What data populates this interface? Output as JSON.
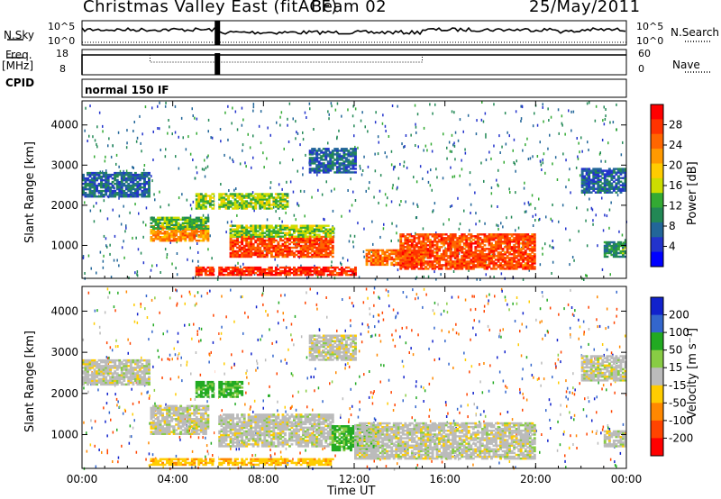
{
  "header": {
    "station": "Christmas Valley East (fitACF)",
    "beam": "Beam 02",
    "date": "25/May/2011"
  },
  "strips": {
    "nsky_label": "N.Sky",
    "nsky_ticks": [
      "10^5",
      "10^0"
    ],
    "nsearch_label": "N.Search",
    "nsearch_ticks": [
      "10^5",
      "10^0"
    ],
    "freq_label": "Freq.",
    "freq_unit": "[MHz]",
    "freq_ticks": [
      "18",
      "8"
    ],
    "nave_label": "Nave",
    "nave_ticks": [
      "60",
      "0"
    ],
    "cpid_label": "CPID",
    "cpid_value": "normal 150 IF"
  },
  "panels": {
    "ylabel": "Slant Range [km]",
    "xlabel": "Time UT",
    "power_label": "Power [dB]",
    "power_colorbar": {
      "ticks": [
        "28",
        "24",
        "20",
        "16",
        "12",
        "8",
        "4"
      ],
      "colors": [
        "#ff0000",
        "#ff3300",
        "#ff6600",
        "#ff9900",
        "#ffcc00",
        "#ccdd00",
        "#33aa33",
        "#228855",
        "#226699",
        "#2233cc",
        "#0000ff"
      ]
    },
    "velocity_label": "Velocity [m s⁻¹]",
    "velocity_colorbar": {
      "ticks": [
        "200",
        "100",
        "50",
        "15",
        "-15",
        "-50",
        "-100",
        "-200"
      ],
      "colors": [
        "#1122cc",
        "#3366cc",
        "#22aa22",
        "#88cc44",
        "#bbbbbb",
        "#ffcc00",
        "#ff8800",
        "#ff4400",
        "#ff0000"
      ]
    }
  },
  "chart_data": [
    {
      "type": "heatmap",
      "title": "Power [dB]",
      "xlabel": "Time UT",
      "ylabel": "Slant Range [km]",
      "x_ticks": [
        "00:00",
        "04:00",
        "08:00",
        "12:00",
        "16:00",
        "20:00",
        "00:00"
      ],
      "y_ticks": [
        1000,
        2000,
        3000,
        4000
      ],
      "xlim": [
        0,
        24
      ],
      "ylim": [
        180,
        4600
      ],
      "regions": [
        {
          "t0": 0.0,
          "t1": 3.0,
          "r0": 2200,
          "r1": 2800,
          "value": 6
        },
        {
          "t0": 3.0,
          "t1": 5.5,
          "r0": 1100,
          "r1": 1500,
          "value": 22
        },
        {
          "t0": 3.0,
          "t1": 5.5,
          "r0": 1400,
          "r1": 1700,
          "value": 12
        },
        {
          "t0": 5.0,
          "t1": 9.0,
          "r0": 1900,
          "r1": 2300,
          "value": 14
        },
        {
          "t0": 6.5,
          "t1": 11.0,
          "r0": 700,
          "r1": 1200,
          "value": 26
        },
        {
          "t0": 6.5,
          "t1": 11.0,
          "r0": 1200,
          "r1": 1500,
          "value": 14
        },
        {
          "t0": 10.0,
          "t1": 12.0,
          "r0": 2800,
          "r1": 3400,
          "value": 6
        },
        {
          "t0": 12.5,
          "t1": 15.0,
          "r0": 500,
          "r1": 900,
          "value": 24
        },
        {
          "t0": 14.0,
          "t1": 20.0,
          "r0": 400,
          "r1": 1300,
          "value": 26
        },
        {
          "t0": 5.0,
          "t1": 12.0,
          "r0": 250,
          "r1": 450,
          "value": 28
        },
        {
          "t0": 22.0,
          "t1": 24.0,
          "r0": 2300,
          "r1": 2900,
          "value": 6
        },
        {
          "t0": 23.0,
          "t1": 24.0,
          "r0": 700,
          "r1": 1100,
          "value": 10
        }
      ]
    },
    {
      "type": "heatmap",
      "title": "Velocity [m s⁻¹]",
      "xlabel": "Time UT",
      "ylabel": "Slant Range [km]",
      "x_ticks": [
        "00:00",
        "04:00",
        "08:00",
        "12:00",
        "16:00",
        "20:00",
        "00:00"
      ],
      "y_ticks": [
        1000,
        2000,
        3000,
        4000
      ],
      "xlim": [
        0,
        24
      ],
      "ylim": [
        180,
        4600
      ],
      "regions": [
        {
          "t0": 0.0,
          "t1": 3.0,
          "r0": 2200,
          "r1": 2800,
          "value": 0
        },
        {
          "t0": 3.0,
          "t1": 5.5,
          "r0": 1000,
          "r1": 1700,
          "value": 0
        },
        {
          "t0": 5.0,
          "t1": 7.0,
          "r0": 1900,
          "r1": 2300,
          "value": 40
        },
        {
          "t0": 6.0,
          "t1": 11.0,
          "r0": 700,
          "r1": 1500,
          "value": 0
        },
        {
          "t0": 10.0,
          "t1": 12.0,
          "r0": 2800,
          "r1": 3400,
          "value": 0
        },
        {
          "t0": 11.0,
          "t1": 13.0,
          "r0": 600,
          "r1": 1200,
          "value": 40
        },
        {
          "t0": 12.0,
          "t1": 20.0,
          "r0": 400,
          "r1": 1300,
          "value": 0
        },
        {
          "t0": 3.0,
          "t1": 11.0,
          "r0": 250,
          "r1": 400,
          "value": -40
        },
        {
          "t0": 22.0,
          "t1": 24.0,
          "r0": 2300,
          "r1": 2900,
          "value": 0
        },
        {
          "t0": 23.0,
          "t1": 24.0,
          "r0": 700,
          "r1": 1100,
          "value": 0
        }
      ]
    }
  ]
}
